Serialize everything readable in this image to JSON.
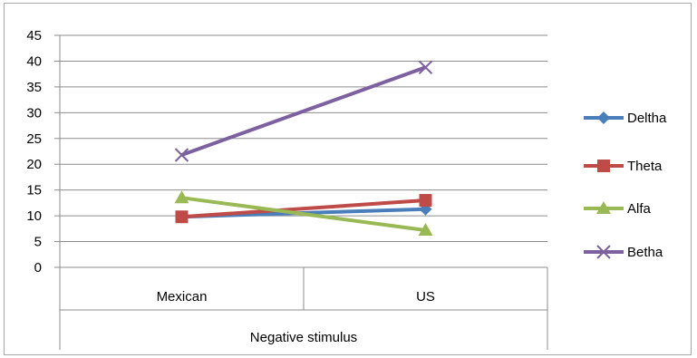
{
  "chart_data": {
    "type": "line",
    "categories": [
      "Mexican",
      "US"
    ],
    "group_label": "Negative stimulus",
    "ylim": [
      0,
      45
    ],
    "yticks": [
      0,
      5,
      10,
      15,
      20,
      25,
      30,
      35,
      40,
      45
    ],
    "grid": true,
    "legend_position": "right",
    "series": [
      {
        "name": "Deltha",
        "values": [
          9.8,
          11.3
        ],
        "color": "#4a7ebb",
        "marker": "diamond"
      },
      {
        "name": "Theta",
        "values": [
          9.8,
          13.0
        ],
        "color": "#be4b48",
        "marker": "square"
      },
      {
        "name": "Alfa",
        "values": [
          13.5,
          7.2
        ],
        "color": "#98b954",
        "marker": "triangle"
      },
      {
        "name": "Betha",
        "values": [
          21.8,
          38.8
        ],
        "color": "#7d60a0",
        "marker": "x"
      }
    ]
  }
}
